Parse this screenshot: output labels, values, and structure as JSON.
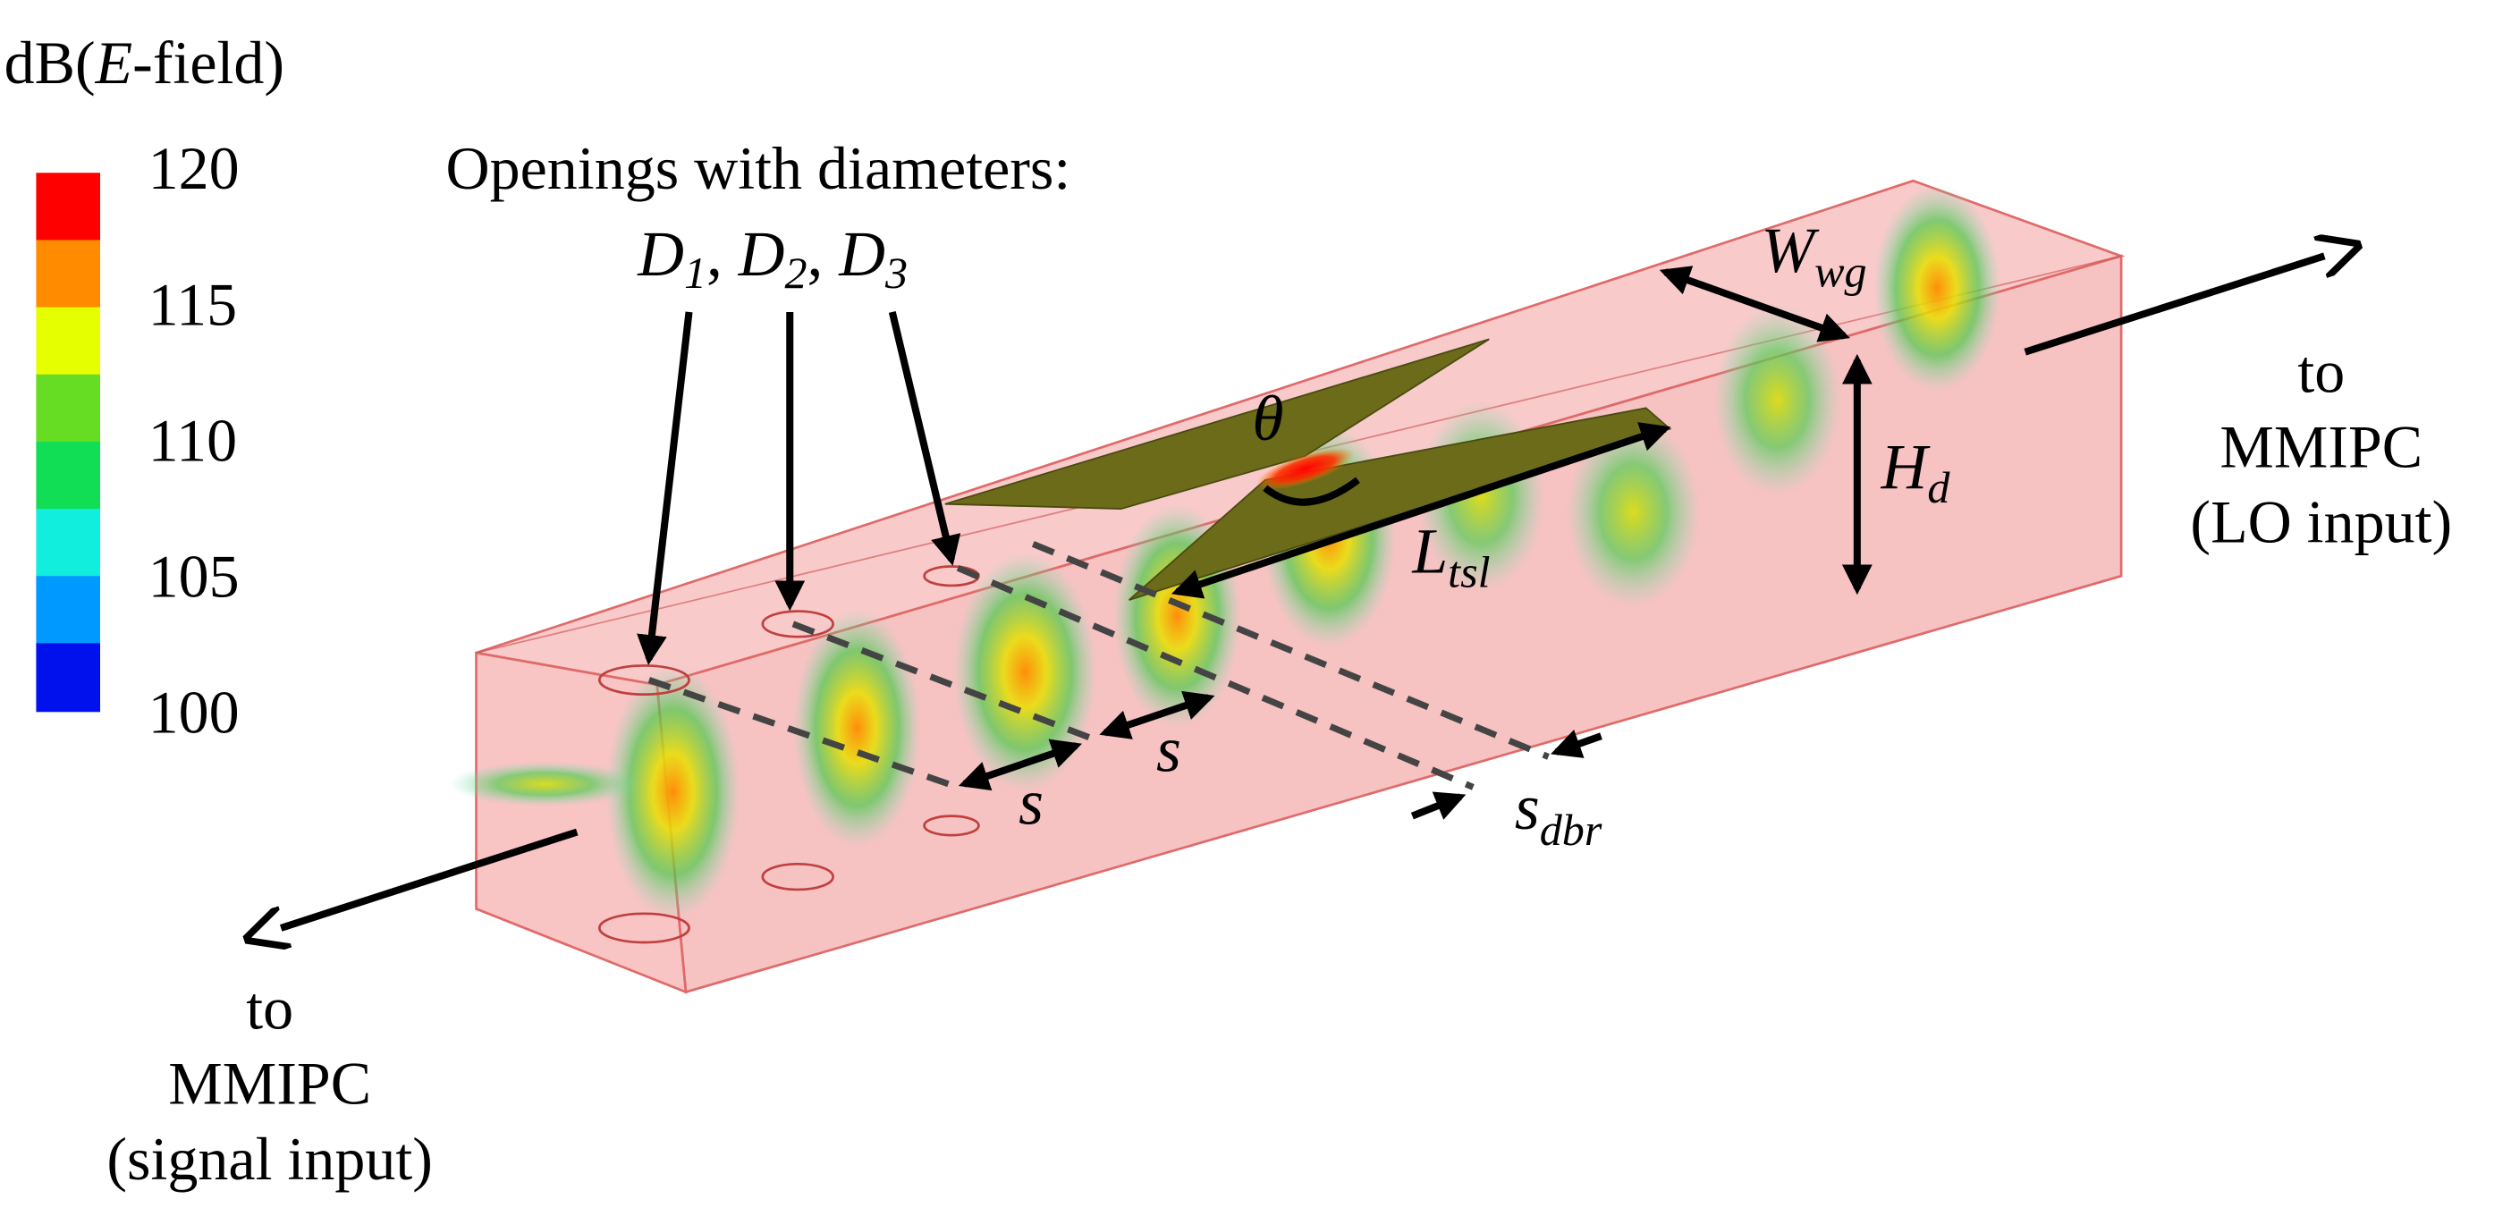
{
  "colorbar": {
    "title": {
      "prefix": "dB(",
      "variable": "E",
      "suffix": "-field)"
    },
    "ticks": [
      120,
      115,
      110,
      105,
      100
    ]
  },
  "openings": {
    "caption": "Openings with diameters:",
    "separator": ", ",
    "diameters": [
      {
        "main": "D",
        "sub": "1"
      },
      {
        "main": "D",
        "sub": "2"
      },
      {
        "main": "D",
        "sub": "3"
      }
    ]
  },
  "theta": "θ",
  "dimensions": {
    "width": {
      "main": "W",
      "sub": "wg"
    },
    "height": {
      "main": "H",
      "sub": "d"
    },
    "slot_length": {
      "main": "L",
      "sub": "tsl"
    },
    "spacing": "s",
    "dbr_spacing": {
      "main": "s",
      "sub": "dbr"
    }
  },
  "ports": {
    "lo": [
      "to",
      "MMIPC",
      "(LO input)"
    ],
    "signal": [
      "to",
      "MMIPC",
      "(signal input)"
    ]
  }
}
